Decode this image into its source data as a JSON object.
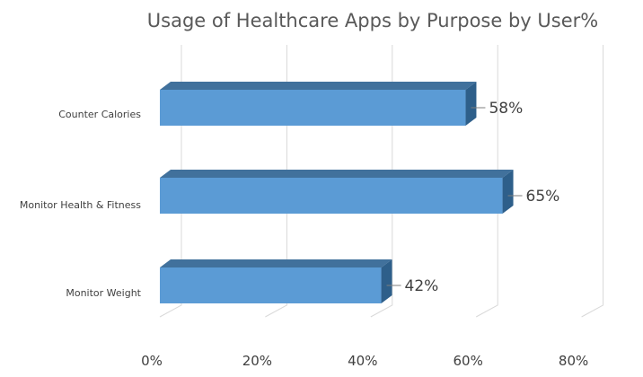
{
  "chart_data": {
    "type": "bar",
    "orientation": "horizontal",
    "style": "3d",
    "title": "Usage of Healthcare Apps by Purpose by User%",
    "xlabel": "",
    "ylabel": "",
    "categories": [
      "Counter Calories",
      "Monitor Health & Fitness",
      "Monitor Weight"
    ],
    "values": [
      58,
      65,
      42
    ],
    "data_labels": [
      "58%",
      "65%",
      "42%"
    ],
    "xlim": [
      0,
      80
    ],
    "x_ticks": [
      0,
      20,
      40,
      60,
      80
    ],
    "x_tick_labels": [
      "0%",
      "20%",
      "40%",
      "60%",
      "80%"
    ],
    "grid": true,
    "legend": "none",
    "colors": {
      "bar_front": "#5b9bd5",
      "bar_top": "#41719c",
      "bar_side": "#2e5f8a",
      "grid": "#d9d9d9",
      "text": "#404040"
    }
  }
}
